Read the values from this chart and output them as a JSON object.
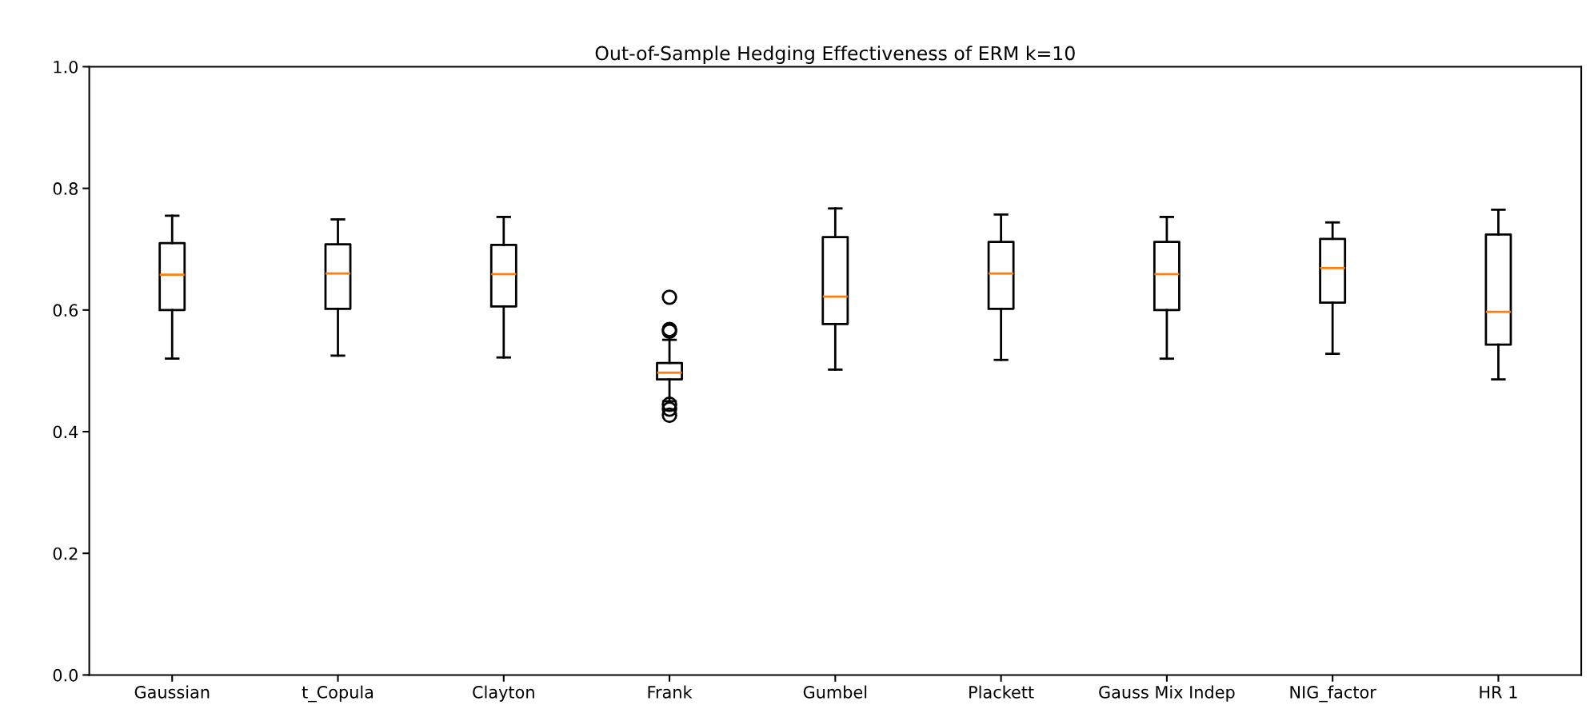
{
  "chart_data": {
    "type": "box",
    "title": "Out-of-Sample Hedging Effectiveness of ERM k=10",
    "categories": [
      "Gaussian",
      "t_Copula",
      "Clayton",
      "Frank",
      "Gumbel",
      "Plackett",
      "Gauss Mix Indep",
      "NIG_factor",
      "HR 1"
    ],
    "boxes": [
      {
        "low": 0.52,
        "q1": 0.6,
        "median": 0.658,
        "q3": 0.71,
        "high": 0.755
      },
      {
        "low": 0.525,
        "q1": 0.602,
        "median": 0.66,
        "q3": 0.708,
        "high": 0.749
      },
      {
        "low": 0.522,
        "q1": 0.606,
        "median": 0.659,
        "q3": 0.707,
        "high": 0.753
      },
      {
        "low": 0.45,
        "q1": 0.486,
        "median": 0.497,
        "q3": 0.513,
        "high": 0.551,
        "outliers": [
          0.621,
          0.568,
          0.565,
          0.445,
          0.437,
          0.427
        ]
      },
      {
        "low": 0.502,
        "q1": 0.577,
        "median": 0.622,
        "q3": 0.72,
        "high": 0.767
      },
      {
        "low": 0.518,
        "q1": 0.602,
        "median": 0.66,
        "q3": 0.712,
        "high": 0.757
      },
      {
        "low": 0.52,
        "q1": 0.6,
        "median": 0.659,
        "q3": 0.712,
        "high": 0.753
      },
      {
        "low": 0.528,
        "q1": 0.612,
        "median": 0.669,
        "q3": 0.717,
        "high": 0.744
      },
      {
        "low": 0.486,
        "q1": 0.543,
        "median": 0.597,
        "q3": 0.724,
        "high": 0.765
      }
    ],
    "ylim": [
      0,
      1
    ],
    "yticks": [
      {
        "value": 0,
        "label": "0.0"
      },
      {
        "value": 0.2,
        "label": "0.2"
      },
      {
        "value": 0.4,
        "label": "0.4"
      },
      {
        "value": 0.6,
        "label": "0.6"
      },
      {
        "value": 0.8,
        "label": "0.8"
      },
      {
        "value": 1,
        "label": "1.0"
      }
    ],
    "grid": false
  }
}
